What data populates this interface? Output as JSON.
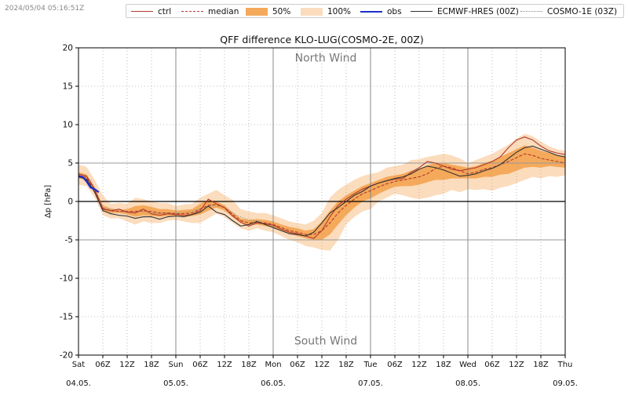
{
  "timestamp": "2024/05/04 05:16:51Z",
  "legend": [
    {
      "label": "ctrl",
      "style": "solid",
      "color": "#b03a2e"
    },
    {
      "label": "median",
      "style": "dashed",
      "color": "#b03a2e"
    },
    {
      "label": "50%",
      "style": "fill",
      "color": "#f5a95a"
    },
    {
      "label": "100%",
      "style": "fill",
      "color": "#fbdcbc"
    },
    {
      "label": "obs",
      "style": "solid",
      "color": "#1a2fcc"
    },
    {
      "label": "ECMWF-HRES (00Z)",
      "style": "solid",
      "color": "#333333"
    },
    {
      "label": "COSMO-1E (03Z)",
      "style": "dotted",
      "color": "#888888"
    }
  ],
  "chart_data": {
    "type": "line",
    "title": "QFF difference KLO-LUG(COSMO-2E, 00Z)",
    "ylabel": "Δp [hPa]",
    "xlabel": "",
    "ylim": [
      -20,
      20
    ],
    "xlim": [
      0,
      120
    ],
    "yticks": [
      20,
      15,
      10,
      5,
      0,
      -5,
      -10,
      -15,
      -20
    ],
    "xticks": [
      {
        "x": 0,
        "line1": "Sat",
        "line2": "04.05."
      },
      {
        "x": 6,
        "line1": "06Z",
        "line2": ""
      },
      {
        "x": 12,
        "line1": "12Z",
        "line2": ""
      },
      {
        "x": 18,
        "line1": "18Z",
        "line2": ""
      },
      {
        "x": 24,
        "line1": "Sun",
        "line2": "05.05."
      },
      {
        "x": 30,
        "line1": "06Z",
        "line2": ""
      },
      {
        "x": 36,
        "line1": "12Z",
        "line2": ""
      },
      {
        "x": 42,
        "line1": "18Z",
        "line2": ""
      },
      {
        "x": 48,
        "line1": "Mon",
        "line2": "06.05."
      },
      {
        "x": 54,
        "line1": "06Z",
        "line2": ""
      },
      {
        "x": 60,
        "line1": "12Z",
        "line2": ""
      },
      {
        "x": 66,
        "line1": "18Z",
        "line2": ""
      },
      {
        "x": 72,
        "line1": "Tue",
        "line2": "07.05."
      },
      {
        "x": 78,
        "line1": "06Z",
        "line2": ""
      },
      {
        "x": 84,
        "line1": "12Z",
        "line2": ""
      },
      {
        "x": 90,
        "line1": "18Z",
        "line2": ""
      },
      {
        "x": 96,
        "line1": "Wed",
        "line2": "08.05."
      },
      {
        "x": 102,
        "line1": "06Z",
        "line2": ""
      },
      {
        "x": 108,
        "line1": "12Z",
        "line2": ""
      },
      {
        "x": 114,
        "line1": "18Z",
        "line2": ""
      },
      {
        "x": 120,
        "line1": "Thu",
        "line2": "09.05."
      }
    ],
    "annotations": [
      {
        "text": "North Wind",
        "x": 60,
        "y": 18.2
      },
      {
        "text": "South Wind",
        "x": 60,
        "y": -18.6
      }
    ],
    "horizontal_lines": [
      5,
      0,
      -5
    ],
    "grid": "dotted",
    "series": [
      {
        "name": "100%",
        "kind": "band",
        "color": "#fbdcbc",
        "x": [
          0,
          2,
          4,
          6,
          8,
          10,
          12,
          14,
          16,
          18,
          20,
          22,
          24,
          26,
          28,
          30,
          32,
          34,
          36,
          38,
          40,
          42,
          44,
          46,
          48,
          50,
          52,
          54,
          56,
          58,
          60,
          62,
          64,
          66,
          68,
          70,
          72,
          74,
          76,
          78,
          80,
          82,
          84,
          86,
          88,
          90,
          92,
          94,
          96,
          98,
          100,
          102,
          104,
          106,
          108,
          110,
          112,
          114,
          116,
          118,
          120
        ],
        "upper": [
          4.8,
          4.5,
          2.8,
          0.8,
          -0.3,
          -0.2,
          -0.3,
          0.5,
          0.3,
          0.0,
          -0.2,
          -0.2,
          -0.6,
          -0.4,
          -0.3,
          0.5,
          1.0,
          1.5,
          0.8,
          0.2,
          -1.0,
          -1.3,
          -1.5,
          -1.5,
          -1.8,
          -2.2,
          -2.6,
          -2.8,
          -3.0,
          -2.5,
          -1.5,
          0.5,
          1.5,
          2.2,
          2.8,
          3.3,
          3.6,
          3.8,
          4.4,
          4.6,
          4.8,
          5.4,
          5.5,
          5.8,
          6.0,
          6.2,
          6.0,
          5.6,
          5.0,
          5.4,
          5.8,
          6.2,
          6.8,
          7.4,
          8.2,
          8.8,
          8.5,
          7.8,
          7.2,
          6.8,
          6.6
        ],
        "lower": [
          2.2,
          2.0,
          0.5,
          -1.8,
          -2.2,
          -2.2,
          -2.6,
          -3.0,
          -2.6,
          -2.8,
          -2.8,
          -2.5,
          -2.4,
          -2.6,
          -2.8,
          -2.8,
          -2.2,
          -1.6,
          -2.0,
          -2.8,
          -3.5,
          -3.8,
          -3.5,
          -3.8,
          -4.0,
          -4.5,
          -5.0,
          -5.3,
          -5.8,
          -6.0,
          -6.3,
          -6.4,
          -5.0,
          -3.0,
          -2.0,
          -1.3,
          -1.0,
          0.0,
          0.5,
          1.0,
          0.8,
          0.5,
          0.3,
          0.5,
          0.8,
          1.0,
          1.5,
          1.2,
          1.6,
          1.5,
          1.6,
          1.4,
          1.8,
          2.0,
          2.4,
          2.8,
          3.2,
          3.0,
          3.3,
          3.2,
          3.4
        ]
      },
      {
        "name": "50%",
        "kind": "band",
        "color": "#f5a95a",
        "x": [
          0,
          2,
          4,
          6,
          8,
          10,
          12,
          14,
          16,
          18,
          20,
          22,
          24,
          26,
          28,
          30,
          32,
          34,
          36,
          38,
          40,
          42,
          44,
          46,
          48,
          50,
          52,
          54,
          56,
          58,
          60,
          62,
          64,
          66,
          68,
          70,
          72,
          74,
          76,
          78,
          80,
          82,
          84,
          86,
          88,
          90,
          92,
          94,
          96,
          98,
          100,
          102,
          104,
          106,
          108,
          110,
          112,
          114,
          116,
          118,
          120
        ],
        "upper": [
          3.8,
          3.5,
          1.8,
          -0.5,
          -0.9,
          -1.1,
          -1.0,
          -0.6,
          -0.5,
          -0.7,
          -1.0,
          -1.0,
          -1.2,
          -1.1,
          -1.0,
          -0.3,
          0.2,
          0.0,
          -0.5,
          -1.4,
          -2.2,
          -2.4,
          -2.3,
          -2.4,
          -2.6,
          -3.0,
          -3.3,
          -3.5,
          -3.8,
          -3.6,
          -2.6,
          -1.2,
          0.0,
          0.8,
          1.4,
          2.0,
          2.4,
          2.8,
          3.2,
          3.4,
          3.6,
          4.0,
          4.2,
          4.7,
          5.0,
          5.0,
          4.8,
          4.6,
          4.4,
          4.6,
          5.0,
          5.3,
          5.8,
          6.3,
          6.8,
          7.3,
          7.0,
          6.6,
          6.3,
          6.0,
          5.8
        ],
        "lower": [
          3.0,
          2.8,
          1.0,
          -1.2,
          -1.5,
          -1.5,
          -1.7,
          -2.0,
          -1.8,
          -1.9,
          -2.0,
          -1.9,
          -1.9,
          -2.0,
          -1.9,
          -1.7,
          -1.2,
          -0.8,
          -1.2,
          -2.0,
          -2.8,
          -3.1,
          -3.0,
          -3.2,
          -3.4,
          -3.8,
          -4.2,
          -4.5,
          -4.8,
          -5.0,
          -5.0,
          -4.3,
          -3.0,
          -1.8,
          -0.8,
          0.0,
          0.4,
          1.0,
          1.5,
          1.9,
          2.0,
          2.0,
          2.2,
          2.5,
          2.8,
          2.8,
          3.0,
          3.0,
          3.0,
          3.0,
          3.2,
          3.2,
          3.5,
          3.6,
          4.0,
          4.4,
          4.5,
          4.4,
          4.6,
          4.5,
          4.4
        ]
      },
      {
        "name": "COSMO-1E (03Z)",
        "kind": "line",
        "color": "#888888",
        "dash": "1,2",
        "x": [
          3,
          6,
          9,
          12,
          15,
          18,
          21,
          24,
          27,
          30,
          33,
          36,
          39,
          42,
          45
        ],
        "y": [
          2.8,
          -0.8,
          -1.2,
          -1.4,
          -1.3,
          -1.5,
          -1.6,
          -1.5,
          -1.4,
          -1.0,
          -0.5,
          -0.8,
          -1.8,
          -2.4,
          -2.6
        ]
      },
      {
        "name": "median",
        "kind": "line",
        "color": "#b03a2e",
        "dash": "4,2",
        "x": [
          0,
          2,
          4,
          6,
          8,
          10,
          12,
          14,
          16,
          18,
          20,
          22,
          24,
          26,
          28,
          30,
          32,
          34,
          36,
          38,
          40,
          42,
          44,
          46,
          48,
          50,
          52,
          54,
          56,
          58,
          60,
          62,
          64,
          66,
          68,
          70,
          72,
          74,
          76,
          78,
          80,
          82,
          84,
          86,
          88,
          90,
          92,
          94,
          96,
          98,
          100,
          102,
          104,
          106,
          108,
          110,
          112,
          114,
          116,
          118,
          120
        ],
        "y": [
          3.4,
          3.1,
          1.4,
          -0.9,
          -1.2,
          -1.3,
          -1.3,
          -1.3,
          -1.2,
          -1.3,
          -1.5,
          -1.5,
          -1.6,
          -1.6,
          -1.5,
          -1.0,
          -0.5,
          -0.4,
          -0.8,
          -1.7,
          -2.5,
          -2.8,
          -2.7,
          -2.8,
          -3.0,
          -3.4,
          -3.8,
          -4.0,
          -4.3,
          -4.3,
          -3.8,
          -2.8,
          -1.5,
          -0.5,
          0.3,
          1.0,
          1.4,
          1.9,
          2.3,
          2.6,
          2.8,
          3.0,
          3.2,
          3.6,
          4.3,
          4.6,
          4.4,
          4.0,
          3.6,
          3.8,
          4.2,
          4.4,
          4.8,
          5.2,
          5.7,
          6.2,
          6.0,
          5.6,
          5.4,
          5.2,
          5.0
        ]
      },
      {
        "name": "ctrl",
        "kind": "line",
        "color": "#b03a2e",
        "dash": "",
        "x": [
          0,
          2,
          4,
          6,
          8,
          10,
          12,
          14,
          16,
          18,
          20,
          22,
          24,
          26,
          28,
          30,
          32,
          34,
          36,
          38,
          40,
          42,
          44,
          46,
          48,
          50,
          52,
          54,
          56,
          58,
          60,
          62,
          64,
          66,
          68,
          70,
          72,
          74,
          76,
          78,
          80,
          82,
          84,
          86,
          88,
          90,
          92,
          94,
          96,
          98,
          100,
          102,
          104,
          106,
          108,
          110,
          112,
          114,
          116,
          118,
          120
        ],
        "y": [
          3.6,
          3.3,
          1.6,
          -1.0,
          -1.2,
          -1.0,
          -1.4,
          -1.5,
          -1.0,
          -1.6,
          -1.8,
          -1.6,
          -1.7,
          -1.8,
          -1.7,
          -1.2,
          0.3,
          -0.3,
          -0.8,
          -1.9,
          -2.7,
          -3.2,
          -2.8,
          -2.9,
          -3.1,
          -3.6,
          -4.0,
          -4.2,
          -4.5,
          -4.8,
          -3.8,
          -2.0,
          -0.5,
          0.3,
          1.0,
          1.6,
          2.0,
          2.4,
          2.7,
          2.9,
          3.0,
          3.8,
          4.4,
          5.2,
          5.0,
          4.6,
          4.2,
          4.0,
          4.2,
          4.4,
          4.8,
          5.2,
          5.8,
          7.0,
          8.0,
          8.4,
          8.0,
          7.2,
          6.6,
          6.3,
          6.1
        ]
      },
      {
        "name": "ECMWF-HRES (00Z)",
        "kind": "line",
        "color": "#333333",
        "dash": "",
        "x": [
          0,
          2,
          4,
          6,
          8,
          10,
          12,
          14,
          16,
          18,
          20,
          22,
          24,
          26,
          28,
          30,
          32,
          34,
          36,
          38,
          40,
          42,
          44,
          46,
          48,
          50,
          52,
          54,
          56,
          58,
          60,
          62,
          64,
          66,
          68,
          70,
          72,
          74,
          76,
          78,
          80,
          82,
          84,
          86,
          88,
          90,
          92,
          94,
          96,
          98,
          100,
          102,
          104,
          106,
          108,
          110,
          112,
          114,
          116,
          118,
          120
        ],
        "y": [
          3.2,
          2.9,
          1.2,
          -1.2,
          -1.6,
          -1.8,
          -1.9,
          -2.2,
          -2.0,
          -2.0,
          -2.3,
          -2.0,
          -1.9,
          -2.0,
          -1.7,
          -1.4,
          -0.6,
          -1.4,
          -1.7,
          -2.5,
          -3.2,
          -3.0,
          -2.6,
          -3.0,
          -3.4,
          -3.8,
          -4.2,
          -4.3,
          -4.5,
          -4.0,
          -2.8,
          -1.5,
          -0.8,
          0.0,
          0.8,
          1.3,
          2.0,
          2.4,
          2.7,
          3.0,
          3.2,
          3.6,
          4.2,
          4.6,
          4.4,
          4.1,
          3.7,
          3.3,
          3.4,
          3.6,
          4.0,
          4.3,
          4.8,
          5.6,
          6.4,
          7.0,
          7.2,
          6.8,
          6.4,
          6.0,
          5.8
        ]
      },
      {
        "name": "obs",
        "kind": "line",
        "color": "#1a2fcc",
        "dash": "",
        "x": [
          0,
          1,
          2,
          3,
          4,
          5
        ],
        "y": [
          3.3,
          3.2,
          2.6,
          1.8,
          1.6,
          1.2
        ]
      }
    ]
  }
}
